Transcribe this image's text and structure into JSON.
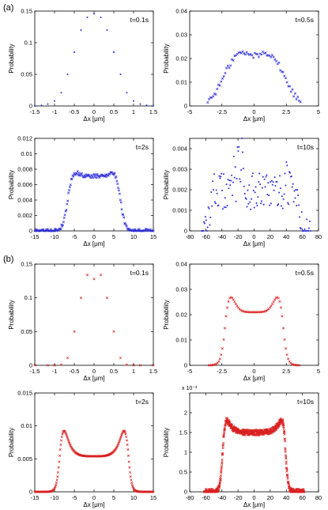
{
  "panel_labels": [
    "(a)",
    "(b)"
  ],
  "common": {
    "xlabel": "Δx [μm]",
    "ylabel": "Probability"
  },
  "chart_data": [
    {
      "id": "a1",
      "type": "scatter",
      "marker": "point",
      "color": "#2a2ad8",
      "annotation": "t=0.1s",
      "xlim": [
        -1.5,
        1.5
      ],
      "ylim": [
        0,
        0.15
      ],
      "xticks": [
        -1.5,
        -1,
        -0.5,
        0,
        0.5,
        1,
        1.5
      ],
      "yticks": [
        0,
        0.05,
        0.1,
        0.15
      ],
      "xtick_labels": [
        "-1.5",
        "-1",
        "-0.5",
        "0",
        "0.5",
        "1",
        "1.5"
      ],
      "ytick_labels": [
        "0",
        "0.05",
        "0.1",
        "0.15"
      ],
      "x": [
        -1.5,
        -1.33,
        -1.17,
        -1.0,
        -0.83,
        -0.67,
        -0.5,
        -0.33,
        -0.17,
        0.0,
        0.17,
        0.33,
        0.5,
        0.67,
        0.83,
        1.0,
        1.17,
        1.33,
        1.5
      ],
      "y": [
        0.0,
        0.001,
        0.003,
        0.008,
        0.021,
        0.05,
        0.085,
        0.12,
        0.14,
        0.146,
        0.14,
        0.12,
        0.085,
        0.05,
        0.021,
        0.008,
        0.003,
        0.001,
        0.0
      ]
    },
    {
      "id": "a2",
      "type": "scatter",
      "marker": "cross",
      "color": "#2a2ad8",
      "annotation": "t=0.5s",
      "xlim": [
        -5,
        5
      ],
      "ylim": [
        0,
        0.04
      ],
      "xticks": [
        -5,
        -2.5,
        0,
        2.5,
        5
      ],
      "yticks": [
        0,
        0.01,
        0.02,
        0.03,
        0.04
      ],
      "xtick_labels": [
        "-5",
        "-2.5",
        "0",
        "2.5",
        "5"
      ],
      "ytick_labels": [
        "0",
        "0.01",
        "0.02",
        "0.03",
        "0.04"
      ],
      "profile": {
        "kind": "double_gauss",
        "x0": -3.6,
        "x1": 3.6,
        "n": 70,
        "mu": 1.25,
        "sigma": 1.1,
        "amp": 0.031,
        "noise": 0.0012
      }
    },
    {
      "id": "a3",
      "type": "scatter",
      "marker": "cross",
      "color": "#2a2ad8",
      "annotation": "t=2s",
      "xlim": [
        -15,
        15
      ],
      "ylim": [
        0,
        0.012
      ],
      "xticks": [
        -15,
        -10,
        -5,
        0,
        5,
        10,
        15
      ],
      "yticks": [
        0,
        0.002,
        0.004,
        0.006,
        0.008,
        0.01,
        0.012
      ],
      "xtick_labels": [
        "-15",
        "-10",
        "-5",
        "0",
        "5",
        "10",
        "15"
      ],
      "ytick_labels": [
        "0",
        "0.002",
        "0.004",
        "0.006",
        "0.008",
        "0.01",
        "0.012"
      ],
      "profile": {
        "kind": "u_shape",
        "x0": -15,
        "x1": 15,
        "n": 170,
        "edge": 6.5,
        "width": 1.3,
        "base": 0.0071,
        "peak": 0.0092,
        "noise": 0.00025
      }
    },
    {
      "id": "a4",
      "type": "scatter",
      "marker": "point",
      "color": "#2a2ad8",
      "annotation": "t=10s",
      "xlim": [
        -80,
        80
      ],
      "ylim": [
        0,
        0.0045
      ],
      "xticks": [
        -80,
        -60,
        -40,
        -20,
        0,
        20,
        40,
        60,
        80
      ],
      "yticks": [
        0,
        0.001,
        0.002,
        0.003,
        0.004
      ],
      "xtick_labels": [
        "-80",
        "-60",
        "-40",
        "-20",
        "0",
        "20",
        "40",
        "60",
        "80"
      ],
      "ytick_labels": [
        "0",
        "0.001",
        "0.002",
        "0.003",
        "0.004"
      ],
      "profile": {
        "kind": "noisy_plateau",
        "x0": -65,
        "x1": 70,
        "n": 150,
        "left": -52,
        "right": 52,
        "width": 4,
        "level": 0.0019,
        "noise": 0.0009,
        "spikes": [
          [
            -20,
            0.0043
          ],
          [
            -15,
            0.0039
          ],
          [
            -25,
            0.0036
          ],
          [
            40,
            0.0031
          ],
          [
            45,
            0.0028
          ]
        ]
      }
    },
    {
      "id": "b1",
      "type": "scatter",
      "marker": "cross",
      "color": "#d92020",
      "annotation": "t=0.1s",
      "xlim": [
        -1.5,
        1.5
      ],
      "ylim": [
        0,
        0.15
      ],
      "xticks": [
        -1.5,
        -1,
        -0.5,
        0,
        0.5,
        1,
        1.5
      ],
      "yticks": [
        0,
        0.05,
        0.1,
        0.15
      ],
      "xtick_labels": [
        "-1.5",
        "-1",
        "-0.5",
        "0",
        "0.5",
        "1",
        "1.5"
      ],
      "ytick_labels": [
        "0",
        "0.05",
        "0.1",
        "0.15"
      ],
      "x": [
        -1.5,
        -1.17,
        -1.0,
        -0.83,
        -0.67,
        -0.5,
        -0.33,
        -0.17,
        0.0,
        0.17,
        0.33,
        0.5,
        0.67,
        0.83,
        1.0,
        1.17,
        1.5
      ],
      "y": [
        0.0,
        0.0,
        0.0,
        0.001,
        0.011,
        0.05,
        0.1,
        0.134,
        0.128,
        0.134,
        0.1,
        0.05,
        0.011,
        0.001,
        0.0,
        0.0,
        0.0
      ]
    },
    {
      "id": "b2",
      "type": "scatter",
      "marker": "cross",
      "color": "#d92020",
      "annotation": "t=0.5s",
      "xlim": [
        -5,
        5
      ],
      "ylim": [
        0,
        0.04
      ],
      "xticks": [
        -5,
        -2.5,
        0,
        2.5,
        5
      ],
      "yticks": [
        0,
        0.01,
        0.02,
        0.03,
        0.04
      ],
      "xtick_labels": [
        "-5",
        "-2.5",
        "0",
        "2.5",
        "5"
      ],
      "ytick_labels": [
        "0",
        "0.01",
        "0.02",
        "0.03",
        "0.04"
      ],
      "profile": {
        "kind": "u_shape",
        "x0": -3.5,
        "x1": 3.5,
        "n": 75,
        "edge": 2.2,
        "width": 0.35,
        "base": 0.021,
        "peak": 0.0355,
        "noise": 0.0
      }
    },
    {
      "id": "b3",
      "type": "scatter",
      "marker": "cross",
      "color": "#d92020",
      "annotation": "t=2s",
      "xlim": [
        -15,
        15
      ],
      "ylim": [
        0,
        0.015
      ],
      "xticks": [
        -15,
        -10,
        -5,
        0,
        5,
        10,
        15
      ],
      "yticks": [
        0,
        0.005,
        0.01,
        0.015
      ],
      "xtick_labels": [
        "-15",
        "-10",
        "-5",
        "0",
        "5",
        "10",
        "15"
      ],
      "ytick_labels": [
        "0",
        "0.005",
        "0.01",
        "0.015"
      ],
      "profile": {
        "kind": "u_shape",
        "x0": -15,
        "x1": 15,
        "n": 220,
        "edge": 8.6,
        "width": 0.9,
        "base": 0.0054,
        "peak": 0.0118,
        "noise": 0.0
      }
    },
    {
      "id": "b4",
      "type": "scatter",
      "marker": "cross",
      "color": "#d92020",
      "annotation": "t=10s",
      "xlim": [
        -80,
        80
      ],
      "ylim": [
        0,
        0.0025
      ],
      "yexponent": "x 10⁻³",
      "xticks": [
        -80,
        -60,
        -40,
        -20,
        0,
        20,
        40,
        60,
        80
      ],
      "yticks": [
        0,
        0.0005,
        0.001,
        0.0015,
        0.002
      ],
      "xtick_labels": [
        "-80",
        "-60",
        "-40",
        "-20",
        "0",
        "20",
        "40",
        "60",
        "80"
      ],
      "ytick_labels": [
        "0",
        "0.5",
        "1",
        "1.5",
        "2"
      ],
      "profile": {
        "kind": "u_shape",
        "x0": -62,
        "x1": 62,
        "n": 600,
        "edge": 39,
        "width": 3.2,
        "base": 0.0015,
        "peak": 0.00205,
        "noise": 7e-05
      }
    }
  ]
}
